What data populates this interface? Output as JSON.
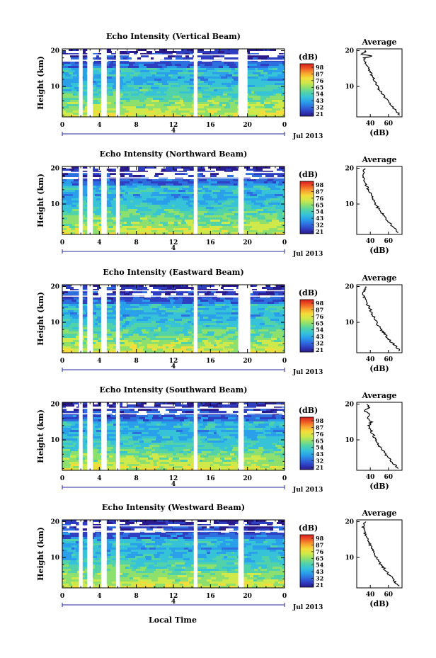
{
  "figure": {
    "x_axis_title": "Local Time",
    "colormap": [
      "#2a1a8c",
      "#2f3fc2",
      "#2e6fe0",
      "#2aa0ea",
      "#36c3d8",
      "#52d2a8",
      "#8ee06e",
      "#cfe84a",
      "#f4dd3a",
      "#f7a52f",
      "#ef5a25",
      "#d81e1e"
    ]
  },
  "chart_data": [
    {
      "type": "heatmap",
      "title": "Echo Intensity (Vertical Beam)",
      "ylabel": "Height (km)",
      "x_ticks": [
        "0",
        "4",
        "8",
        "12",
        "16",
        "20",
        "0"
      ],
      "x_range_hours": [
        0,
        24
      ],
      "y_ticks": [
        "10",
        "20"
      ],
      "y_range_km": [
        1.5,
        20.5
      ],
      "date_tick": "4",
      "date_label": "Jul 2013",
      "colorbar": {
        "unit": "(dB)",
        "labels": [
          "98",
          "87",
          "76",
          "65",
          "54",
          "43",
          "32",
          "21"
        ]
      },
      "data_gaps_hours": [
        [
          1.8,
          2.2
        ],
        [
          2.7,
          3.3
        ],
        [
          4.2,
          4.8
        ],
        [
          5.8,
          6.2
        ],
        [
          14.2,
          14.6
        ],
        [
          19.0,
          20.0
        ]
      ],
      "profile": {
        "title": "Average",
        "xlabel": "(dB)",
        "x_ticks": [
          "40",
          "60"
        ],
        "y_ticks": [
          "10",
          "20"
        ],
        "xlim": [
          25,
          75
        ],
        "ylim": [
          1.5,
          20.5
        ],
        "height_km": [
          2,
          3,
          4,
          5,
          6,
          7,
          8,
          9,
          10,
          11,
          12,
          13,
          14,
          15,
          16,
          17,
          18,
          18.5,
          19,
          19.5,
          20
        ],
        "db": [
          72,
          69,
          66,
          63,
          59,
          56,
          53,
          50,
          48,
          46,
          44,
          42,
          40,
          38,
          36,
          33,
          34,
          42,
          30,
          33,
          35
        ]
      }
    },
    {
      "type": "heatmap",
      "title": "Echo Intensity (Northward Beam)",
      "ylabel": "Height (km)",
      "x_ticks": [
        "0",
        "4",
        "8",
        "12",
        "16",
        "20",
        "0"
      ],
      "x_range_hours": [
        0,
        24
      ],
      "y_ticks": [
        "10",
        "20"
      ],
      "y_range_km": [
        1.5,
        20.5
      ],
      "date_tick": "4",
      "date_label": "Jul 2013",
      "colorbar": {
        "unit": "(dB)",
        "labels": [
          "98",
          "87",
          "76",
          "65",
          "54",
          "43",
          "32",
          "21"
        ]
      },
      "data_gaps_hours": [
        [
          1.8,
          2.2
        ],
        [
          2.7,
          3.3
        ],
        [
          4.2,
          4.8
        ],
        [
          5.8,
          6.2
        ],
        [
          14.2,
          14.6
        ],
        [
          19.0,
          19.6
        ]
      ],
      "profile": {
        "title": "Average",
        "xlabel": "(dB)",
        "x_ticks": [
          "40",
          "60"
        ],
        "y_ticks": [
          "10",
          "20"
        ],
        "xlim": [
          25,
          75
        ],
        "ylim": [
          1.5,
          20.5
        ],
        "height_km": [
          2,
          3,
          4,
          5,
          6,
          7,
          8,
          9,
          10,
          11,
          12,
          13,
          14,
          15,
          16,
          17,
          18,
          19,
          20
        ],
        "db": [
          71,
          68,
          64,
          60,
          57,
          54,
          51,
          48,
          46,
          44,
          42,
          40,
          38,
          36,
          34,
          33,
          32,
          33,
          34
        ]
      }
    },
    {
      "type": "heatmap",
      "title": "Echo Intensity (Eastward Beam)",
      "ylabel": "Height (km)",
      "x_ticks": [
        "0",
        "4",
        "8",
        "12",
        "16",
        "20",
        "0"
      ],
      "x_range_hours": [
        0,
        24
      ],
      "y_ticks": [
        "10",
        "20"
      ],
      "y_range_km": [
        1.5,
        20.5
      ],
      "date_tick": "4",
      "date_label": "Jul 2013",
      "colorbar": {
        "unit": "(dB)",
        "labels": [
          "98",
          "87",
          "76",
          "65",
          "54",
          "43",
          "32",
          "21"
        ]
      },
      "data_gaps_hours": [
        [
          1.8,
          2.2
        ],
        [
          2.7,
          3.3
        ],
        [
          4.2,
          4.8
        ],
        [
          5.8,
          6.2
        ],
        [
          14.2,
          14.6
        ],
        [
          19.0,
          20.3
        ]
      ],
      "profile": {
        "title": "Average",
        "xlabel": "(dB)",
        "x_ticks": [
          "40",
          "60"
        ],
        "y_ticks": [
          "10",
          "20"
        ],
        "xlim": [
          25,
          75
        ],
        "ylim": [
          1.5,
          20.5
        ],
        "height_km": [
          2,
          3,
          4,
          5,
          6,
          7,
          8,
          9,
          10,
          11,
          12,
          13,
          14,
          15,
          16,
          17,
          18,
          19,
          20
        ],
        "db": [
          72,
          69,
          65,
          61,
          58,
          55,
          52,
          49,
          47,
          45,
          43,
          41,
          39,
          37,
          35,
          33,
          32,
          34,
          35
        ]
      }
    },
    {
      "type": "heatmap",
      "title": "Echo Intensity (Southward Beam)",
      "ylabel": "Height (km)",
      "x_ticks": [
        "0",
        "4",
        "8",
        "12",
        "16",
        "20",
        "0"
      ],
      "x_range_hours": [
        0,
        24
      ],
      "y_ticks": [
        "10",
        "20"
      ],
      "y_range_km": [
        1.5,
        20.5
      ],
      "date_tick": "4",
      "date_label": "Jul 2013",
      "colorbar": {
        "unit": "(dB)",
        "labels": [
          "98",
          "87",
          "76",
          "65",
          "54",
          "43",
          "32",
          "21"
        ]
      },
      "data_gaps_hours": [
        [
          1.8,
          2.2
        ],
        [
          2.7,
          3.3
        ],
        [
          4.2,
          4.8
        ],
        [
          5.8,
          6.2
        ],
        [
          14.2,
          14.6
        ],
        [
          19.0,
          19.6
        ]
      ],
      "profile": {
        "title": "Average",
        "xlabel": "(dB)",
        "x_ticks": [
          "40",
          "60"
        ],
        "y_ticks": [
          "10",
          "20"
        ],
        "xlim": [
          25,
          75
        ],
        "ylim": [
          1.5,
          20.5
        ],
        "height_km": [
          2,
          3,
          4,
          5,
          6,
          7,
          8,
          9,
          10,
          11,
          12,
          13,
          14,
          15,
          16,
          17,
          18,
          19,
          20
        ],
        "db": [
          70,
          67,
          63,
          60,
          57,
          54,
          51,
          48,
          46,
          44,
          42,
          40,
          38,
          41,
          36,
          40,
          34,
          38,
          36
        ]
      }
    },
    {
      "type": "heatmap",
      "title": "Echo Intensity (Westward Beam)",
      "ylabel": "Height (km)",
      "x_ticks": [
        "0",
        "4",
        "8",
        "12",
        "16",
        "20",
        "0"
      ],
      "x_range_hours": [
        0,
        24
      ],
      "y_ticks": [
        "10",
        "20"
      ],
      "y_range_km": [
        1.5,
        20.5
      ],
      "date_tick": "4",
      "date_label": "Jul 2013",
      "colorbar": {
        "unit": "(dB)",
        "labels": [
          "98",
          "87",
          "76",
          "65",
          "54",
          "43",
          "32",
          "21"
        ]
      },
      "data_gaps_hours": [
        [
          1.8,
          2.2
        ],
        [
          2.7,
          3.3
        ],
        [
          4.2,
          4.8
        ],
        [
          5.8,
          6.2
        ],
        [
          14.2,
          14.6
        ],
        [
          19.0,
          19.6
        ]
      ],
      "profile": {
        "title": "Average",
        "xlabel": "(dB)",
        "x_ticks": [
          "40",
          "60"
        ],
        "y_ticks": [
          "10",
          "20"
        ],
        "xlim": [
          25,
          75
        ],
        "ylim": [
          1.5,
          20.5
        ],
        "height_km": [
          2,
          3,
          4,
          5,
          6,
          7,
          8,
          9,
          10,
          11,
          12,
          13,
          14,
          15,
          16,
          17,
          18,
          19,
          20
        ],
        "db": [
          71,
          68,
          65,
          62,
          58,
          55,
          52,
          49,
          47,
          45,
          43,
          41,
          39,
          37,
          35,
          34,
          33,
          32,
          35
        ]
      }
    }
  ]
}
